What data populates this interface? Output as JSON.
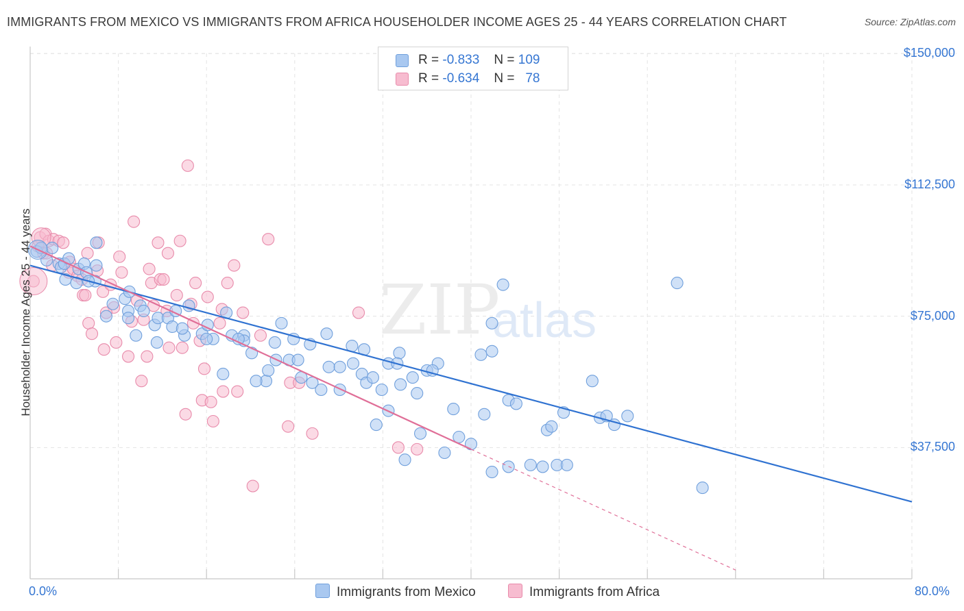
{
  "header": {
    "title": "IMMIGRANTS FROM MEXICO VS IMMIGRANTS FROM AFRICA HOUSEHOLDER INCOME AGES 25 - 44 YEARS CORRELATION CHART",
    "source": "Source: ZipAtlas.com"
  },
  "watermark": {
    "zip": "ZIP",
    "atlas": "atlas"
  },
  "legend": {
    "rows": [
      {
        "r_label": "R =",
        "r_value": "-0.833",
        "n_label": "N =",
        "n_value": "109",
        "color": "#a9c8f0",
        "border": "#6f9fdc"
      },
      {
        "r_label": "R =",
        "r_value": "-0.634",
        "n_label": "N =",
        "n_value": "78",
        "color": "#f7bcd0",
        "border": "#e88aaa"
      }
    ]
  },
  "bottom_legend": {
    "mexico": "Immigrants from Mexico",
    "africa": "Immigrants from Africa"
  },
  "colors": {
    "mexico_fill": "#a9c8f0",
    "mexico_stroke": "#6f9fdc",
    "mexico_line": "#2f72d1",
    "africa_fill": "#f7bcd0",
    "africa_stroke": "#e88aaa",
    "africa_line": "#e06f98",
    "tick_text": "#3576d2",
    "grid": "#e3e3e3"
  },
  "chart_data": {
    "type": "scatter",
    "title": "IMMIGRANTS FROM MEXICO VS IMMIGRANTS FROM AFRICA HOUSEHOLDER INCOME AGES 25 - 44 YEARS CORRELATION CHART",
    "xlabel": "",
    "ylabel": "Householder Income Ages 25 - 44 years",
    "xlim": [
      0,
      80
    ],
    "ylim": [
      0,
      155000
    ],
    "x_tick_labels": [
      "0.0%",
      "80.0%"
    ],
    "y_ticks": [
      37500,
      75000,
      112500,
      150000
    ],
    "y_tick_labels": [
      "$37,500",
      "$75,000",
      "$112,500",
      "$150,000"
    ],
    "grid": true,
    "legend_position": "top-center",
    "series": [
      {
        "name": "Immigrants from Mexico",
        "r": -0.833,
        "n": 109,
        "trend": {
          "x0": 0,
          "y0": 89500,
          "x1": 80,
          "y1": 22000,
          "dashed_from": null
        },
        "points": [
          [
            0.6,
            93500
          ],
          [
            1.0,
            94500
          ],
          [
            1.5,
            91000
          ],
          [
            2.0,
            94500
          ],
          [
            2.6,
            90000
          ],
          [
            2.8,
            89000
          ],
          [
            3.1,
            90000
          ],
          [
            3.5,
            91500
          ],
          [
            4.4,
            88500
          ],
          [
            4.9,
            90000
          ],
          [
            5.1,
            87500
          ],
          [
            5.9,
            85000
          ],
          [
            6.0,
            96000
          ],
          [
            6.0,
            89500
          ],
          [
            5.3,
            85000
          ],
          [
            3.2,
            85500
          ],
          [
            7.5,
            78500
          ],
          [
            8.6,
            80000
          ],
          [
            9.0,
            82000
          ],
          [
            8.9,
            76500
          ],
          [
            8.9,
            74500
          ],
          [
            10.0,
            78000
          ],
          [
            10.3,
            76500
          ],
          [
            11.3,
            72500
          ],
          [
            11.6,
            74500
          ],
          [
            12.5,
            74500
          ],
          [
            12.9,
            72000
          ],
          [
            13.2,
            76500
          ],
          [
            14.0,
            69500
          ],
          [
            14.4,
            78000
          ],
          [
            15.6,
            70000
          ],
          [
            16.1,
            72500
          ],
          [
            16.6,
            68500
          ],
          [
            17.5,
            58500
          ],
          [
            17.8,
            76000
          ],
          [
            18.3,
            69500
          ],
          [
            19.4,
            69500
          ],
          [
            19.4,
            68000
          ],
          [
            20.1,
            64500
          ],
          [
            21.4,
            56500
          ],
          [
            21.6,
            59500
          ],
          [
            22.2,
            67500
          ],
          [
            22.8,
            73000
          ],
          [
            23.5,
            62500
          ],
          [
            23.9,
            68500
          ],
          [
            24.3,
            62500
          ],
          [
            24.6,
            57500
          ],
          [
            25.4,
            67000
          ],
          [
            25.6,
            56000
          ],
          [
            26.4,
            54000
          ],
          [
            26.9,
            70000
          ],
          [
            27.1,
            60500
          ],
          [
            28.1,
            60500
          ],
          [
            28.1,
            54000
          ],
          [
            29.2,
            66500
          ],
          [
            29.3,
            61500
          ],
          [
            30.1,
            58500
          ],
          [
            30.3,
            65500
          ],
          [
            30.5,
            56000
          ],
          [
            31.1,
            57500
          ],
          [
            31.4,
            44000
          ],
          [
            31.9,
            54000
          ],
          [
            32.5,
            61500
          ],
          [
            32.5,
            48000
          ],
          [
            33.5,
            64500
          ],
          [
            33.6,
            55500
          ],
          [
            34.0,
            34000
          ],
          [
            34.7,
            57500
          ],
          [
            35.1,
            53000
          ],
          [
            36.0,
            59500
          ],
          [
            35.4,
            41500
          ],
          [
            37.0,
            61500
          ],
          [
            36.5,
            59500
          ],
          [
            37.6,
            36000
          ],
          [
            38.4,
            48500
          ],
          [
            38.9,
            40500
          ],
          [
            40.0,
            38500
          ],
          [
            40.9,
            64000
          ],
          [
            41.9,
            73000
          ],
          [
            41.9,
            65000
          ],
          [
            42.9,
            84000
          ],
          [
            43.4,
            51000
          ],
          [
            44.1,
            50000
          ],
          [
            41.9,
            30500
          ],
          [
            45.4,
            32500
          ],
          [
            46.5,
            32000
          ],
          [
            46.9,
            42500
          ],
          [
            47.3,
            43500
          ],
          [
            47.8,
            32500
          ],
          [
            48.7,
            32500
          ],
          [
            48.4,
            47500
          ],
          [
            51.0,
            56500
          ],
          [
            51.7,
            46000
          ],
          [
            52.3,
            46500
          ],
          [
            53.0,
            44000
          ],
          [
            54.2,
            46500
          ],
          [
            58.7,
            84500
          ],
          [
            61.0,
            26000
          ],
          [
            41.2,
            47000
          ],
          [
            43.4,
            32000
          ],
          [
            33.3,
            61500
          ],
          [
            13.8,
            71500
          ],
          [
            18.9,
            68500
          ],
          [
            20.5,
            56500
          ],
          [
            22.3,
            62500
          ],
          [
            9.6,
            69500
          ],
          [
            11.5,
            67500
          ],
          [
            16.0,
            68500
          ],
          [
            6.9,
            75000
          ],
          [
            4.2,
            84500
          ]
        ]
      },
      {
        "name": "Immigrants from Africa",
        "r": -0.634,
        "n": 78,
        "trend": {
          "x0": 0,
          "y0": 95000,
          "x1": 40,
          "y1": 37000,
          "dashed_from": 40,
          "dashed_to": [
            64,
            2500
          ]
        },
        "points": [
          [
            0.3,
            85000
          ],
          [
            0.7,
            95000
          ],
          [
            0.9,
            97500
          ],
          [
            1.2,
            93000
          ],
          [
            1.4,
            98500
          ],
          [
            1.7,
            96500
          ],
          [
            2.1,
            97000
          ],
          [
            2.6,
            96500
          ],
          [
            3.6,
            90500
          ],
          [
            3.5,
            87500
          ],
          [
            3.9,
            88500
          ],
          [
            4.3,
            86500
          ],
          [
            4.7,
            85500
          ],
          [
            4.8,
            81000
          ],
          [
            5.0,
            81000
          ],
          [
            5.2,
            93000
          ],
          [
            5.3,
            73000
          ],
          [
            5.6,
            70000
          ],
          [
            6.1,
            88000
          ],
          [
            6.2,
            96000
          ],
          [
            6.6,
            82000
          ],
          [
            6.7,
            65500
          ],
          [
            7.3,
            84000
          ],
          [
            7.6,
            77500
          ],
          [
            7.8,
            67500
          ],
          [
            8.1,
            92000
          ],
          [
            8.3,
            87500
          ],
          [
            8.9,
            63500
          ],
          [
            9.4,
            102000
          ],
          [
            9.7,
            79500
          ],
          [
            10.1,
            56500
          ],
          [
            10.3,
            74000
          ],
          [
            10.6,
            63500
          ],
          [
            10.8,
            88500
          ],
          [
            11.0,
            84500
          ],
          [
            11.2,
            78000
          ],
          [
            11.6,
            96000
          ],
          [
            11.8,
            85500
          ],
          [
            12.1,
            85500
          ],
          [
            12.5,
            93000
          ],
          [
            12.6,
            66000
          ],
          [
            13.3,
            81000
          ],
          [
            13.6,
            96500
          ],
          [
            13.8,
            66000
          ],
          [
            14.1,
            47000
          ],
          [
            14.3,
            118000
          ],
          [
            14.6,
            78500
          ],
          [
            14.8,
            73000
          ],
          [
            15.0,
            84500
          ],
          [
            15.4,
            68000
          ],
          [
            15.6,
            51000
          ],
          [
            15.8,
            60000
          ],
          [
            16.1,
            80500
          ],
          [
            16.4,
            50500
          ],
          [
            16.6,
            45000
          ],
          [
            17.2,
            73000
          ],
          [
            17.4,
            77000
          ],
          [
            17.5,
            53500
          ],
          [
            17.9,
            84500
          ],
          [
            18.5,
            89500
          ],
          [
            18.8,
            53500
          ],
          [
            19.3,
            76000
          ],
          [
            20.2,
            26500
          ],
          [
            20.9,
            69500
          ],
          [
            21.6,
            97000
          ],
          [
            23.4,
            43500
          ],
          [
            23.6,
            56000
          ],
          [
            24.4,
            56000
          ],
          [
            25.6,
            41500
          ],
          [
            29.8,
            76000
          ],
          [
            33.4,
            37500
          ],
          [
            35.1,
            37000
          ],
          [
            2.0,
            89500
          ],
          [
            1.5,
            93000
          ],
          [
            3.0,
            96000
          ],
          [
            6.9,
            76000
          ],
          [
            9.2,
            73500
          ],
          [
            12.4,
            76500
          ]
        ]
      }
    ]
  }
}
